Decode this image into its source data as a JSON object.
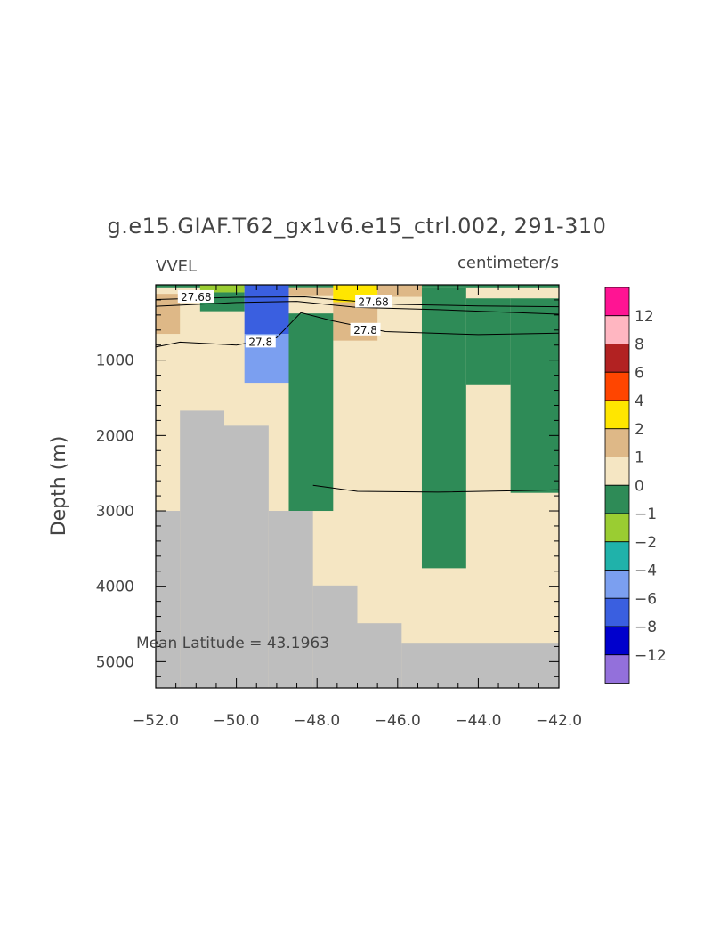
{
  "chart_data": {
    "type": "heatmap",
    "title": "g.e15.GIAF.T62_gx1v6.e15_ctrl.002, 291-310",
    "left_label": "VVEL",
    "right_label": "centimeter/s",
    "ylabel": "Depth (m)",
    "xlabel": "",
    "xlim": [
      -52.0,
      -42.0
    ],
    "ylim": [
      5350,
      0
    ],
    "x_ticks": [
      -52.0,
      -50.0,
      -48.0,
      -46.0,
      -44.0,
      -42.0
    ],
    "x_tick_labels": [
      "-52.0",
      "-50.0",
      "-48.0",
      "-46.0",
      "-44.0",
      "-42.0"
    ],
    "y_ticks": [
      1000,
      2000,
      3000,
      4000,
      5000
    ],
    "y_tick_labels": [
      "1000",
      "2000",
      "3000",
      "4000",
      "5000"
    ],
    "annotation": "Mean Latitude = 43.1963",
    "colorbar": {
      "labels": [
        "12",
        "8",
        "6",
        "4",
        "2",
        "1",
        "0",
        "-1",
        "-2",
        "-4",
        "-6",
        "-8",
        "-12"
      ],
      "colors": [
        "#ff1493",
        "#ffb6c1",
        "#b22222",
        "#ff4500",
        "#ffe600",
        "#deb887",
        "#f5e6c3",
        "#2e8b57",
        "#9acd32",
        "#20b2aa",
        "#7b9ff0",
        "#3a5fe0",
        "#0000cd",
        "#9370db"
      ]
    },
    "background_color": "#f5e6c3",
    "land_color": "#bebebe",
    "cells": [
      {
        "x": [
          -52.0,
          -42.0
        ],
        "z": [
          0,
          45
        ],
        "color": "#2e8b57"
      },
      {
        "x": [
          -52.0,
          -51.4
        ],
        "z": [
          120,
          650
        ],
        "color": "#deb887"
      },
      {
        "x": [
          -50.9,
          -49.8
        ],
        "z": [
          0,
          100
        ],
        "color": "#9acd32"
      },
      {
        "x": [
          -50.9,
          -49.8
        ],
        "z": [
          100,
          350
        ],
        "color": "#2e8b57"
      },
      {
        "x": [
          -49.8,
          -48.7
        ],
        "z": [
          0,
          650
        ],
        "color": "#3a5fe0"
      },
      {
        "x": [
          -49.8,
          -48.7
        ],
        "z": [
          650,
          1300
        ],
        "color": "#7b9ff0"
      },
      {
        "x": [
          -48.7,
          -47.6
        ],
        "z": [
          45,
          150
        ],
        "color": "#deb887"
      },
      {
        "x": [
          -47.6,
          -46.5
        ],
        "z": [
          0,
          230
        ],
        "color": "#ffe600"
      },
      {
        "x": [
          -47.6,
          -46.5
        ],
        "z": [
          230,
          740
        ],
        "color": "#deb887"
      },
      {
        "x": [
          -46.5,
          -45.4
        ],
        "z": [
          0,
          160
        ],
        "color": "#deb887"
      },
      {
        "x": [
          -48.7,
          -47.6
        ],
        "z": [
          380,
          3000
        ],
        "color": "#2e8b57"
      },
      {
        "x": [
          -45.4,
          -44.3
        ],
        "z": [
          45,
          3760
        ],
        "color": "#2e8b57"
      },
      {
        "x": [
          -44.3,
          -43.2
        ],
        "z": [
          180,
          1320
        ],
        "color": "#2e8b57"
      },
      {
        "x": [
          -43.2,
          -42.0
        ],
        "z": [
          180,
          2760
        ],
        "color": "#2e8b57"
      }
    ],
    "land": [
      {
        "x": [
          -52.0,
          -51.4
        ],
        "z": [
          3000,
          5350
        ]
      },
      {
        "x": [
          -51.4,
          -50.3
        ],
        "z": [
          1670,
          5350
        ]
      },
      {
        "x": [
          -50.3,
          -49.2
        ],
        "z": [
          1870,
          5350
        ]
      },
      {
        "x": [
          -49.2,
          -48.1
        ],
        "z": [
          3000,
          5350
        ]
      },
      {
        "x": [
          -48.1,
          -47.0
        ],
        "z": [
          3990,
          5350
        ]
      },
      {
        "x": [
          -47.0,
          -45.9
        ],
        "z": [
          4490,
          5350
        ]
      },
      {
        "x": [
          -45.9,
          -42.0
        ],
        "z": [
          4750,
          5350
        ]
      }
    ],
    "contours": [
      {
        "level": "27.68",
        "points": [
          [
            -52.0,
            195
          ],
          [
            -50.0,
            165
          ],
          [
            -48.3,
            160
          ],
          [
            -47.5,
            200
          ],
          [
            -46.0,
            260
          ],
          [
            -44.0,
            280
          ],
          [
            -42.0,
            290
          ]
        ]
      },
      {
        "level": "27.68",
        "points": [
          [
            -52.0,
            285
          ],
          [
            -50.0,
            235
          ],
          [
            -48.5,
            220
          ],
          [
            -47.0,
            300
          ],
          [
            -45.0,
            330
          ],
          [
            -42.0,
            390
          ]
        ]
      },
      {
        "level": "27.8",
        "points": [
          [
            -52.0,
            825
          ],
          [
            -51.4,
            760
          ],
          [
            -50.0,
            800
          ],
          [
            -49.0,
            700
          ],
          [
            -48.4,
            370
          ],
          [
            -47.6,
            480
          ],
          [
            -46.3,
            620
          ],
          [
            -44.0,
            660
          ],
          [
            -42.0,
            640
          ]
        ]
      },
      {
        "level": "",
        "points": [
          [
            -48.1,
            2660
          ],
          [
            -47.0,
            2740
          ],
          [
            -45.0,
            2750
          ],
          [
            -43.0,
            2730
          ],
          [
            -42.0,
            2720
          ]
        ]
      }
    ],
    "contour_labels": [
      {
        "text": "27.68",
        "x": -51.0,
        "z": 165
      },
      {
        "text": "27.68",
        "x": -46.6,
        "z": 230
      },
      {
        "text": "27.8",
        "x": -49.4,
        "z": 760
      },
      {
        "text": "27.8",
        "x": -46.8,
        "z": 600
      }
    ]
  }
}
